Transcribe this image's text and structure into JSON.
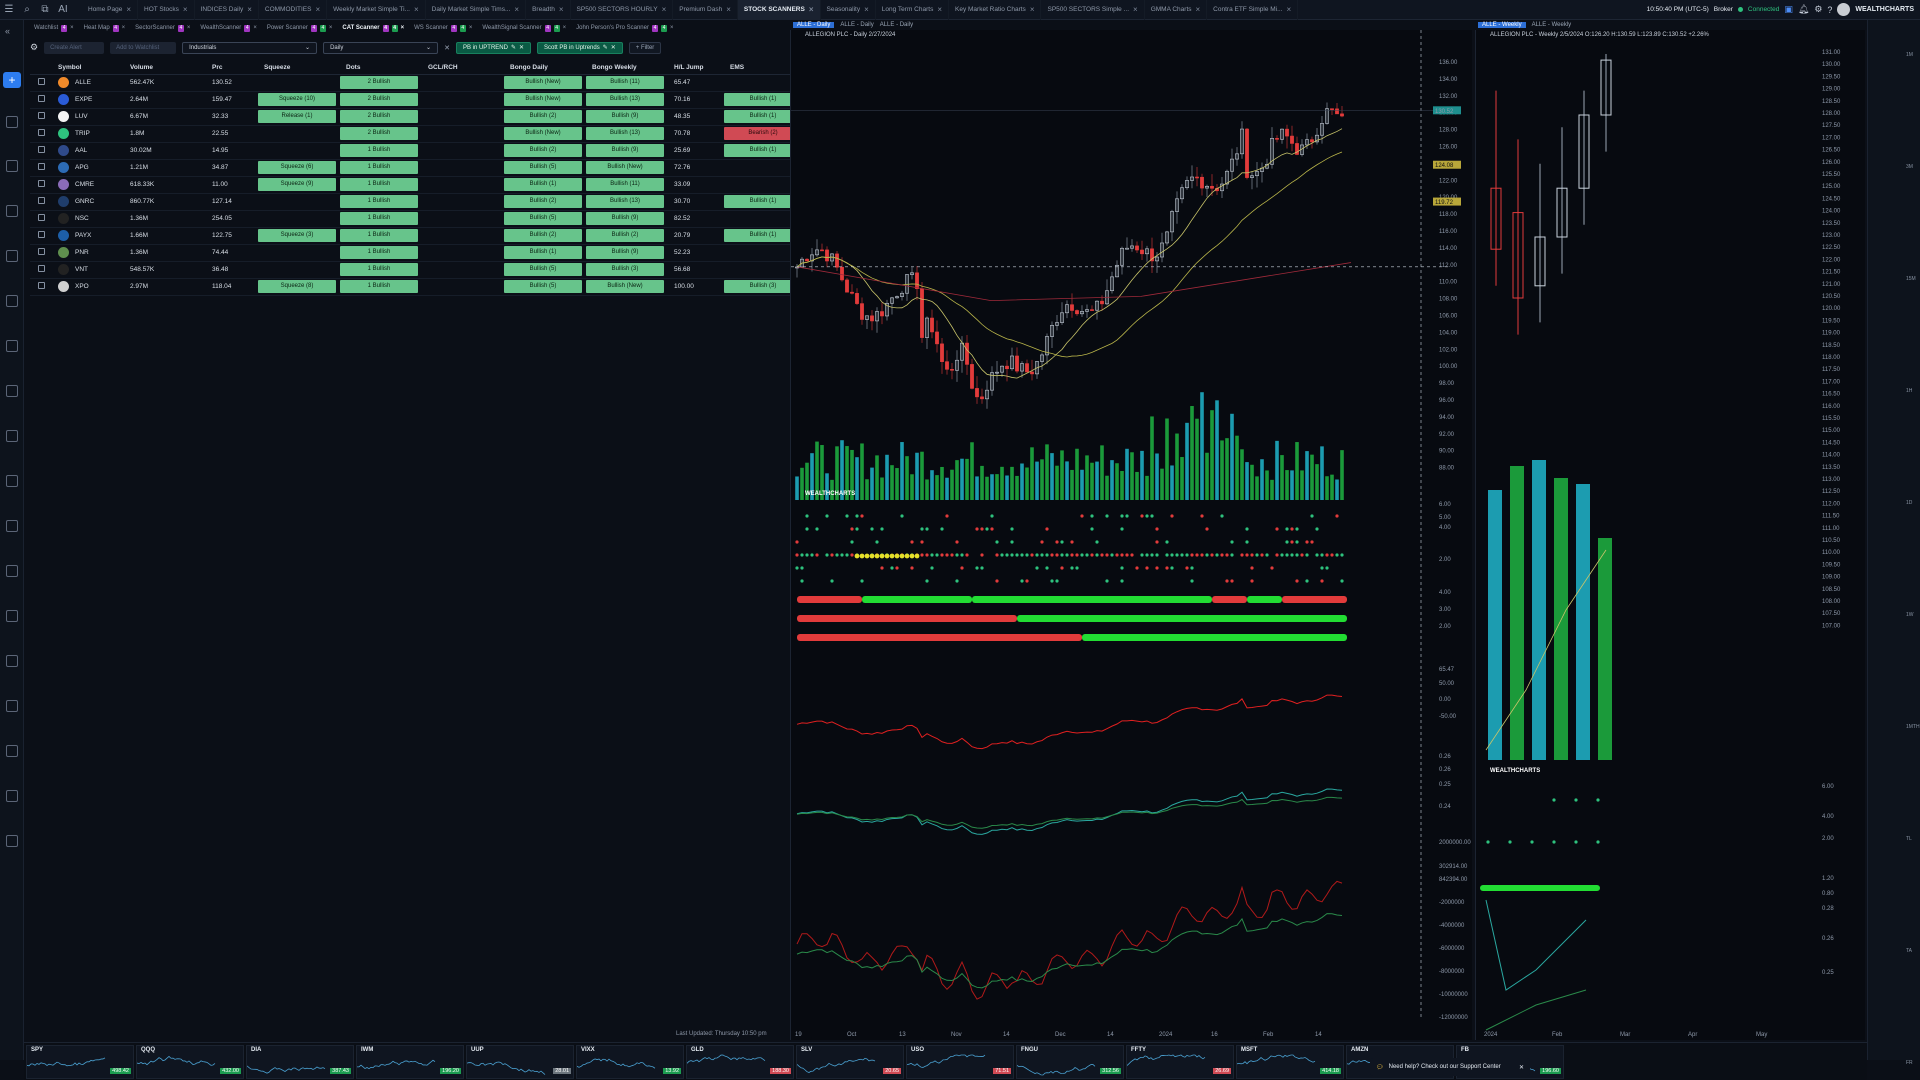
{
  "topbar": {
    "tabs": [
      "Home Page",
      "HOT Stocks",
      "INDICES Daily",
      "COMMODITIES",
      "Weekly Market Simple Ti...",
      "Daily Market Simple Tims...",
      "Breadth",
      "SP500 SECTORS HOURLY",
      "Premium Dash",
      "STOCK SCANNERS",
      "Seasonality",
      "Long Term Charts",
      "Key Market Ratio Charts",
      "SP500 SECTORS Simple ...",
      "GMMA Charts",
      "Contra ETF Simple Mi..."
    ],
    "active_tab": "STOCK SCANNERS",
    "time": "10:50:40 PM (UTC-5)",
    "broker": "Broker",
    "status": "Connected",
    "brand": "WEALTHCHARTS",
    "ai_label": "AI"
  },
  "scanner_tabs": [
    {
      "label": "Watchlist",
      "badges": [
        "4"
      ]
    },
    {
      "label": "Heat Map",
      "badges": [
        "4"
      ]
    },
    {
      "label": "SectorScanner",
      "badges": [
        "4"
      ]
    },
    {
      "label": "WealthScanner",
      "badges": [
        "4"
      ]
    },
    {
      "label": "Power Scanner",
      "badges": [
        "4",
        "4"
      ]
    },
    {
      "label": "CAT Scanner",
      "badges": [
        "4",
        "4"
      ],
      "active": true
    },
    {
      "label": "WS Scanner",
      "badges": [
        "4",
        "4"
      ]
    },
    {
      "label": "WealthSignal Scanner",
      "badges": [
        "4",
        "4"
      ]
    },
    {
      "label": "John Person's Pro Scanner",
      "badges": [
        "4",
        "4"
      ]
    }
  ],
  "controls": {
    "create_alert": "Create Alert",
    "add_watchlist": "Add to Watchlist",
    "industry": "Industrials",
    "timeframe": "Daily",
    "filter1": "PB in UPTREND",
    "filter2": "Scott PB in Uptrends",
    "add_filter": "+ Filter"
  },
  "table": {
    "headers": [
      "Symbol",
      "Volume",
      "Prc",
      "Squeeze",
      "Dots",
      "GCL/RCH",
      "Bongo Daily",
      "Bongo Weekly",
      "H/L Jump",
      "EMS"
    ],
    "rows": [
      {
        "sym": "ALLE",
        "vol": "562.47K",
        "prc": "130.52",
        "sq": "",
        "dots": "2 Bullish",
        "bd": "Bullish (New)",
        "bw": "Bullish (11)",
        "hl": "65.47",
        "ems": "",
        "color": "#f08a2a"
      },
      {
        "sym": "EXPE",
        "vol": "2.64M",
        "prc": "159.47",
        "sq": "Squeeze (10)",
        "dots": "2 Bullish",
        "bd": "Bullish (New)",
        "bw": "Bullish (13)",
        "hl": "70.16",
        "ems": "Bullish (1)",
        "color": "#2a5bd7"
      },
      {
        "sym": "LUV",
        "vol": "6.67M",
        "prc": "32.33",
        "sq": "Release (1)",
        "dots": "2 Bullish",
        "bd": "Bullish (2)",
        "bw": "Bullish (9)",
        "hl": "48.35",
        "ems": "Bullish (1)",
        "color": "#f4f4f4"
      },
      {
        "sym": "TRIP",
        "vol": "1.8M",
        "prc": "22.55",
        "sq": "",
        "dots": "2 Bullish",
        "bd": "Bullish (New)",
        "bw": "Bullish (13)",
        "hl": "70.78",
        "ems": "Bearish (2)",
        "color": "#2ec27e"
      },
      {
        "sym": "AAL",
        "vol": "30.02M",
        "prc": "14.95",
        "sq": "",
        "dots": "1 Bullish",
        "bd": "Bullish (2)",
        "bw": "Bullish (9)",
        "hl": "25.69",
        "ems": "Bullish (1)",
        "color": "#2f4a8a"
      },
      {
        "sym": "APG",
        "vol": "1.21M",
        "prc": "34.87",
        "sq": "Squeeze (6)",
        "dots": "1 Bullish",
        "bd": "Bullish (5)",
        "bw": "Bullish (New)",
        "hl": "72.76",
        "ems": "",
        "color": "#2c6bb5"
      },
      {
        "sym": "CMRE",
        "vol": "618.33K",
        "prc": "11.00",
        "sq": "Squeeze (9)",
        "dots": "1 Bullish",
        "bd": "Bullish (1)",
        "bw": "Bullish (11)",
        "hl": "33.09",
        "ems": "",
        "color": "#8a6bb8"
      },
      {
        "sym": "GNRC",
        "vol": "860.77K",
        "prc": "127.14",
        "sq": "",
        "dots": "1 Bullish",
        "bd": "Bullish (2)",
        "bw": "Bullish (13)",
        "hl": "30.70",
        "ems": "Bullish (1)",
        "color": "#1f3d6b"
      },
      {
        "sym": "NSC",
        "vol": "1.36M",
        "prc": "254.05",
        "sq": "",
        "dots": "1 Bullish",
        "bd": "Bullish (5)",
        "bw": "Bullish (9)",
        "hl": "82.52",
        "ems": "",
        "color": "#222"
      },
      {
        "sym": "PAYX",
        "vol": "1.66M",
        "prc": "122.75",
        "sq": "Squeeze (3)",
        "dots": "1 Bullish",
        "bd": "Bullish (2)",
        "bw": "Bullish (2)",
        "hl": "20.79",
        "ems": "Bullish (1)",
        "color": "#1d5fa8"
      },
      {
        "sym": "PNR",
        "vol": "1.36M",
        "prc": "74.44",
        "sq": "",
        "dots": "1 Bullish",
        "bd": "Bullish (1)",
        "bw": "Bullish (9)",
        "hl": "52.23",
        "ems": "",
        "color": "#5f8f4e"
      },
      {
        "sym": "VNT",
        "vol": "548.57K",
        "prc": "36.48",
        "sq": "",
        "dots": "1 Bullish",
        "bd": "Bullish (5)",
        "bw": "Bullish (3)",
        "hl": "56.68",
        "ems": "",
        "color": "#222"
      },
      {
        "sym": "XPO",
        "vol": "2.97M",
        "prc": "118.04",
        "sq": "Squeeze (8)",
        "dots": "1 Bullish",
        "bd": "Bullish (5)",
        "bw": "Bullish (New)",
        "hl": "100.00",
        "ems": "Bullish (3)",
        "color": "#d0d0d0"
      }
    ],
    "last_updated": "Last Updated: Thursday 10:50 pm"
  },
  "chart1": {
    "tabs": [
      "ALLE - Daily",
      "ALLE - Daily",
      "ALLE - Daily"
    ],
    "title": "ALLEGION PLC - Daily 2/27/2024",
    "x_labels": [
      "19",
      "Oct",
      "13",
      "Nov",
      "14",
      "Dec",
      "14",
      "2024",
      "16",
      "Feb",
      "14"
    ],
    "y_labels": [
      "136.00",
      "134.00",
      "132.00",
      "130.00",
      "128.00",
      "126.00",
      "124.00",
      "122.00",
      "120.00",
      "118.00",
      "116.00",
      "114.00",
      "112.00",
      "110.00",
      "108.00",
      "106.00",
      "104.00",
      "102.00",
      "100.00",
      "98.00",
      "96.00",
      "94.00",
      "92.00",
      "90.00",
      "88.00"
    ],
    "price_tag": "130.52",
    "tags": [
      "124.08",
      "119.72"
    ],
    "ind_labels": [
      "6.00",
      "5.00",
      "4.00",
      "2.00",
      "4.00",
      "3.00",
      "2.00",
      "65.47",
      "50.00",
      "0.00",
      "-50.00",
      "0.26",
      "0.26",
      "0.25",
      "0.24",
      "2000000.00",
      "302914.00",
      "842394.00",
      "-2000000",
      "-4000000",
      "-6000000",
      "-8000000",
      "-10000000",
      "-12000000"
    ]
  },
  "chart2": {
    "tabs": [
      "ALLE - Weekly",
      "ALLE - Weekly"
    ],
    "title": "ALLEGION PLC - Weekly 2/5/2024 O:126.20 H:130.59 L:123.89 C:130.52 +2.26%",
    "x_labels": [
      "2024",
      "Feb",
      "Mar",
      "Apr",
      "May"
    ],
    "y_labels": [
      "131.00",
      "130.00",
      "129.50",
      "129.00",
      "128.50",
      "128.00",
      "127.50",
      "127.00",
      "126.50",
      "126.00",
      "125.50",
      "125.00",
      "124.50",
      "124.00",
      "123.50",
      "123.00",
      "122.50",
      "122.00",
      "121.50",
      "121.00",
      "120.50",
      "120.00",
      "119.50",
      "119.00",
      "118.50",
      "118.00",
      "117.50",
      "117.00",
      "116.50",
      "116.00",
      "115.50",
      "115.00",
      "114.50",
      "114.00",
      "113.50",
      "113.00",
      "112.50",
      "112.00",
      "111.50",
      "111.00",
      "110.50",
      "110.00",
      "109.50",
      "109.00",
      "108.50",
      "108.00",
      "107.50",
      "107.00"
    ],
    "ind_labels": [
      "6.00",
      "4.00",
      "2.00",
      "1.20",
      "0.80",
      "0.28",
      "0.26",
      "0.25"
    ]
  },
  "timeframes": [
    "1M",
    "3M",
    "15M",
    "1H",
    "1D",
    "1W",
    "1MTH",
    "TL",
    "TA",
    "FR"
  ],
  "tickers": [
    {
      "s": "SPY",
      "p": "498.42",
      "c": "#1c9c50"
    },
    {
      "s": "QQQ",
      "p": "432.00",
      "c": "#1c9c50"
    },
    {
      "s": "DIA",
      "p": "387.43",
      "c": "#1c9c50"
    },
    {
      "s": "IWM",
      "p": "196.20",
      "c": "#1c9c50"
    },
    {
      "s": "UUP",
      "p": "28.01",
      "c": "#6c757d"
    },
    {
      "s": "VIXX",
      "p": "13.92",
      "c": "#1c9c50"
    },
    {
      "s": "GLD",
      "p": "188.30",
      "c": "#d04a54"
    },
    {
      "s": "SLV",
      "p": "20.65",
      "c": "#d04a54"
    },
    {
      "s": "USO",
      "p": "71.51",
      "c": "#d04a54"
    },
    {
      "s": "FNGU",
      "p": "312.56",
      "c": "#1c9c50"
    },
    {
      "s": "FFTY",
      "p": "26.69",
      "c": "#d04a54"
    },
    {
      "s": "MSFT",
      "p": "414.18",
      "c": "#1c9c50"
    },
    {
      "s": "AMZN",
      "p": "",
      "c": "#1c9c50"
    },
    {
      "s": "FB",
      "p": "196.60",
      "c": "#1c9c50"
    }
  ],
  "help": {
    "text": "Need help? Check out our Support Center"
  }
}
